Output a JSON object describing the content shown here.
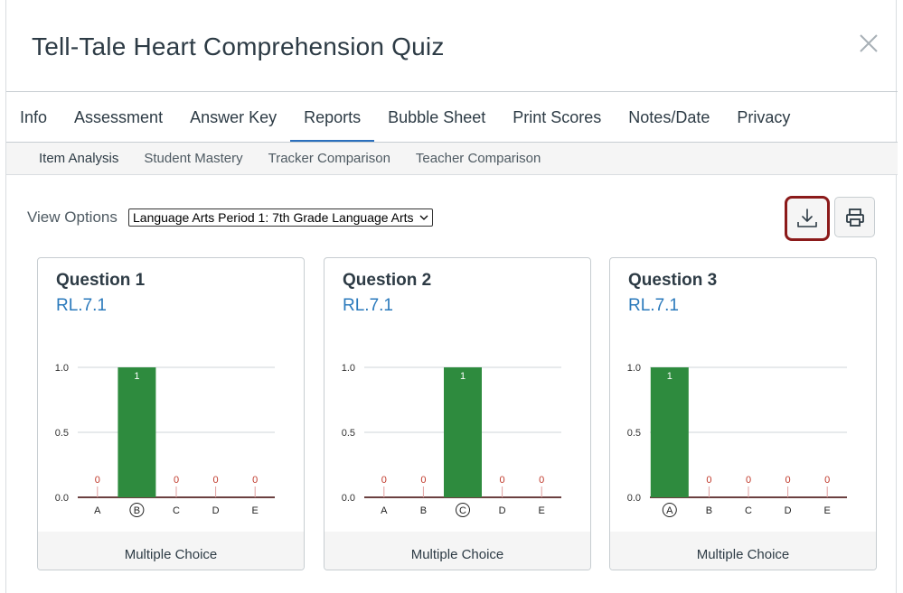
{
  "modal": {
    "title": "Tell-Tale Heart Comprehension Quiz"
  },
  "tabs": [
    "Info",
    "Assessment",
    "Answer Key",
    "Reports",
    "Bubble Sheet",
    "Print Scores",
    "Notes/Date",
    "Privacy"
  ],
  "active_tab": "Reports",
  "subtabs": [
    "Item Analysis",
    "Student Mastery",
    "Tracker Comparison",
    "Teacher Comparison"
  ],
  "active_subtab": "Item Analysis",
  "view_options": {
    "label": "View Options",
    "selected": "Language Arts Period 1: 7th Grade Language Arts"
  },
  "colors": {
    "accent": "#2b6fbd",
    "bar": "#2e8b3e",
    "zero": "#c0392b",
    "highlight": "#8b1a1a",
    "standard": "#2b7abc"
  },
  "icons": {
    "close": "close-icon",
    "download": "download-icon",
    "print": "printer-icon"
  },
  "cards": [
    {
      "title": "Question 1",
      "standard": "RL.7.1",
      "type": "Multiple Choice"
    },
    {
      "title": "Question 2",
      "standard": "RL.7.1",
      "type": "Multiple Choice"
    },
    {
      "title": "Question 3",
      "standard": "RL.7.1",
      "type": "Multiple Choice"
    }
  ],
  "chart_data": [
    {
      "type": "bar",
      "title": "Question 1",
      "categories": [
        "A",
        "B",
        "C",
        "D",
        "E"
      ],
      "values": [
        0,
        1,
        0,
        0,
        0
      ],
      "correct": "B",
      "yticks": [
        "0.0",
        "0.5",
        "1.0"
      ],
      "ylim": [
        0,
        1
      ]
    },
    {
      "type": "bar",
      "title": "Question 2",
      "categories": [
        "A",
        "B",
        "C",
        "D",
        "E"
      ],
      "values": [
        0,
        0,
        1,
        0,
        0
      ],
      "correct": "C",
      "yticks": [
        "0.0",
        "0.5",
        "1.0"
      ],
      "ylim": [
        0,
        1
      ]
    },
    {
      "type": "bar",
      "title": "Question 3",
      "categories": [
        "A",
        "B",
        "C",
        "D",
        "E"
      ],
      "values": [
        1,
        0,
        0,
        0,
        0
      ],
      "correct": "A",
      "yticks": [
        "0.0",
        "0.5",
        "1.0"
      ],
      "ylim": [
        0,
        1
      ]
    }
  ]
}
